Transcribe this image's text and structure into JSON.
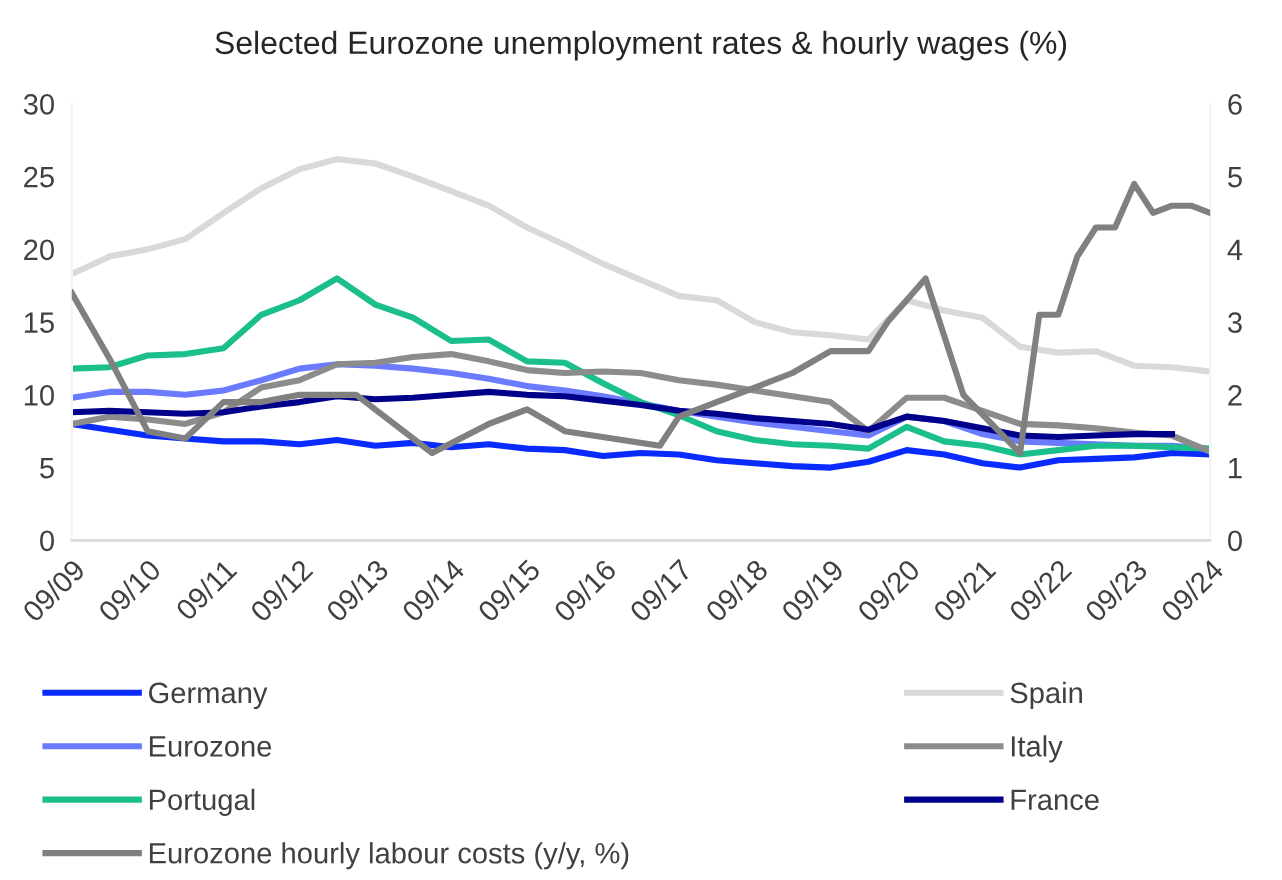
{
  "chart_data": {
    "type": "line",
    "title": "Selected Eurozone unemployment rates & hourly wages (%)",
    "x": [
      "2009-09",
      "2010-03",
      "2010-09",
      "2011-03",
      "2011-09",
      "2012-03",
      "2012-09",
      "2013-03",
      "2013-09",
      "2014-03",
      "2014-09",
      "2015-03",
      "2015-09",
      "2016-03",
      "2016-09",
      "2017-03",
      "2017-09",
      "2018-03",
      "2018-09",
      "2019-03",
      "2019-09",
      "2020-03",
      "2020-09",
      "2021-03",
      "2021-09",
      "2022-03",
      "2022-09",
      "2023-03",
      "2023-09",
      "2024-03",
      "2024-09"
    ],
    "series": [
      {
        "name": "Germany",
        "color": "#0a2bff",
        "values": [
          8.0,
          7.6,
          7.2,
          7.0,
          6.8,
          6.8,
          6.6,
          6.9,
          6.5,
          6.7,
          6.4,
          6.6,
          6.3,
          6.2,
          5.8,
          6.0,
          5.9,
          5.5,
          5.3,
          5.1,
          5.0,
          5.4,
          6.2,
          5.9,
          5.3,
          5.0,
          5.5,
          5.6,
          5.7,
          6.0,
          5.9
        ]
      },
      {
        "name": "Eurozone",
        "color": "#6b7bff",
        "values": [
          9.8,
          10.2,
          10.2,
          10.0,
          10.3,
          11.0,
          11.8,
          12.1,
          12.0,
          11.8,
          11.5,
          11.1,
          10.6,
          10.3,
          9.9,
          9.4,
          8.9,
          8.5,
          8.1,
          7.8,
          7.5,
          7.2,
          8.5,
          8.2,
          7.3,
          6.8,
          6.7,
          6.6,
          6.5,
          6.5,
          6.3
        ]
      },
      {
        "name": "Portugal",
        "color": "#1abf8c",
        "values": [
          11.8,
          11.9,
          12.7,
          12.8,
          13.2,
          15.5,
          16.5,
          18.0,
          16.2,
          15.3,
          13.7,
          13.8,
          12.3,
          12.2,
          10.8,
          9.5,
          8.6,
          7.5,
          6.9,
          6.6,
          6.5,
          6.3,
          7.8,
          6.8,
          6.5,
          5.9,
          6.2,
          6.5,
          6.5,
          6.4,
          6.3
        ]
      },
      {
        "name": "Eurozone hourly labour costs (y/y, %)",
        "color": "#808080",
        "axis": "y2",
        "x": [
          "2009-09",
          "2010-03",
          "2010-09",
          "2011-03",
          "2011-09",
          "2012-03",
          "2012-09",
          "2013-03",
          "2013-06",
          "2014-06",
          "2015-03",
          "2015-09",
          "2016-03",
          "2017-06",
          "2017-09",
          "2018-03",
          "2018-09",
          "2019-03",
          "2019-09",
          "2020-03",
          "2020-06",
          "2020-09",
          "2020-12",
          "2021-06",
          "2022-03",
          "2022-06",
          "2022-09",
          "2022-12",
          "2023-03",
          "2023-06",
          "2023-09",
          "2023-12",
          "2024-03",
          "2024-06",
          "2024-09"
        ],
        "values": [
          3.4,
          2.5,
          1.5,
          1.4,
          1.9,
          1.9,
          2.0,
          2.0,
          2.0,
          1.2,
          1.6,
          1.8,
          1.5,
          1.3,
          1.7,
          1.9,
          2.1,
          2.3,
          2.6,
          2.6,
          3.0,
          3.3,
          3.6,
          2.0,
          1.2,
          3.1,
          3.1,
          3.9,
          4.3,
          4.3,
          4.9,
          4.5,
          4.6,
          4.6,
          4.5
        ]
      },
      {
        "name": "Spain",
        "color": "#d9d9d9",
        "values": [
          18.3,
          19.5,
          20.0,
          20.7,
          22.5,
          24.2,
          25.5,
          26.2,
          25.9,
          25.0,
          24.0,
          23.0,
          21.5,
          20.3,
          19.0,
          17.9,
          16.8,
          16.5,
          15.0,
          14.3,
          14.1,
          13.8,
          16.5,
          15.8,
          15.3,
          13.3,
          12.9,
          13.0,
          12.0,
          11.9,
          11.6
        ]
      },
      {
        "name": "Italy",
        "color": "#8c8c8c",
        "values": [
          8.0,
          8.5,
          8.3,
          8.0,
          8.8,
          10.5,
          11.0,
          12.1,
          12.2,
          12.6,
          12.8,
          12.3,
          11.7,
          11.5,
          11.6,
          11.5,
          11.0,
          10.7,
          10.3,
          9.9,
          9.5,
          7.5,
          9.8,
          9.8,
          8.9,
          8.0,
          7.9,
          7.7,
          7.4,
          7.2,
          6.1
        ]
      },
      {
        "name": "France",
        "color": "#00008b",
        "values": [
          8.8,
          8.9,
          8.8,
          8.7,
          8.8,
          9.2,
          9.5,
          9.9,
          9.7,
          9.8,
          10.0,
          10.2,
          10.0,
          9.9,
          9.6,
          9.3,
          8.9,
          8.7,
          8.4,
          8.2,
          8.0,
          7.6,
          8.5,
          8.2,
          7.7,
          7.2,
          7.1,
          7.2,
          7.3,
          7.3,
          null
        ]
      }
    ],
    "xlim": [
      "2009-09",
      "2024-09"
    ],
    "xticks": [
      {
        "value": "2009-09",
        "label": "09/09"
      },
      {
        "value": "2010-09",
        "label": "09/10"
      },
      {
        "value": "2011-09",
        "label": "09/11"
      },
      {
        "value": "2012-09",
        "label": "09/12"
      },
      {
        "value": "2013-09",
        "label": "09/13"
      },
      {
        "value": "2014-09",
        "label": "09/14"
      },
      {
        "value": "2015-09",
        "label": "09/15"
      },
      {
        "value": "2016-09",
        "label": "09/16"
      },
      {
        "value": "2017-09",
        "label": "09/17"
      },
      {
        "value": "2018-09",
        "label": "09/18"
      },
      {
        "value": "2019-09",
        "label": "09/19"
      },
      {
        "value": "2020-09",
        "label": "09/20"
      },
      {
        "value": "2021-09",
        "label": "09/21"
      },
      {
        "value": "2022-09",
        "label": "09/22"
      },
      {
        "value": "2023-09",
        "label": "09/23"
      },
      {
        "value": "2024-09",
        "label": "09/24"
      }
    ],
    "ylim": [
      0,
      30
    ],
    "yticks": [
      0,
      5,
      10,
      15,
      20,
      25,
      30
    ],
    "y2lim": [
      0,
      6
    ],
    "y2ticks": [
      0,
      1,
      2,
      3,
      4,
      5,
      6
    ],
    "grid": false,
    "legend": "bottom",
    "marker": "none",
    "line_style": "solid"
  }
}
